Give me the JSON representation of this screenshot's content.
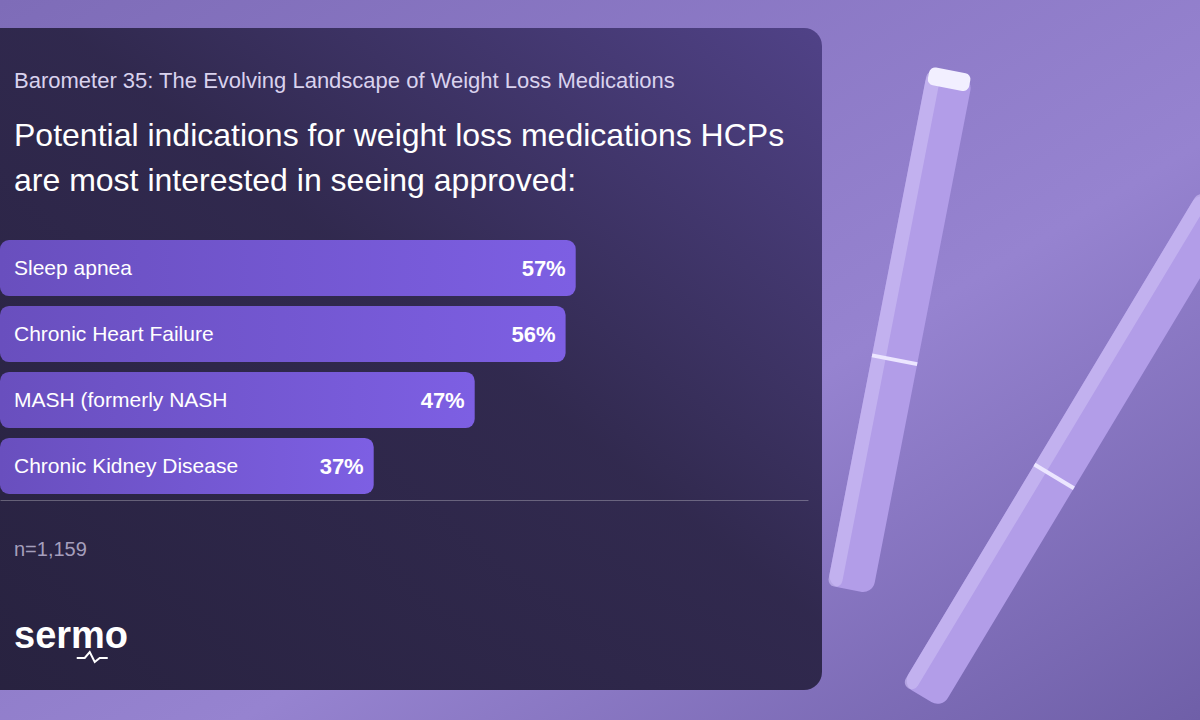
{
  "chart_data": {
    "type": "bar",
    "orientation": "horizontal",
    "subtitle": "Barometer 35: The Evolving Landscape of Weight Loss Medications",
    "title": "Potential indications for weight loss medications HCPs are most interested in seeing approved:",
    "categories": [
      "Sleep apnea",
      "Chronic Heart Failure",
      "MASH (formerly NASH",
      "Chronic Kidney Disease"
    ],
    "values": [
      57,
      56,
      47,
      37
    ],
    "value_labels": [
      "57%",
      "56%",
      "47%",
      "37%"
    ],
    "color": "#7d5fe3",
    "xlim": [
      0,
      80
    ],
    "data_labels": true,
    "tick_labels": false,
    "grid": false,
    "annotations": [
      "n=1,159",
      "sermo"
    ]
  }
}
